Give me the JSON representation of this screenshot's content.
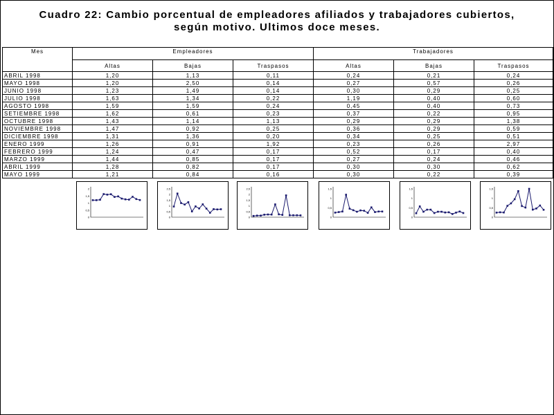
{
  "title_line1": "Cuadro 22: Cambio porcentual de empleadores afiliados y trabajadores cubiertos,",
  "title_line2": "según motivo. Ultimos doce meses.",
  "table": {
    "col_mes": "Mes",
    "group_empleadores": "Empleadores",
    "group_trabajadores": "Trabajadores",
    "sub_headers": [
      "Altas",
      "Bajas",
      "Traspasos",
      "Altas",
      "Bajas",
      "Traspasos"
    ],
    "rows": [
      {
        "mes": "ABRIL 1998",
        "v": [
          "1,20",
          "1,13",
          "0,11",
          "0,24",
          "0,21",
          "0,24"
        ]
      },
      {
        "mes": "MAYO 1998",
        "v": [
          "1,20",
          "2,50",
          "0,14",
          "0,27",
          "0,57",
          "0,26"
        ]
      },
      {
        "mes": "JUNIO 1998",
        "v": [
          "1,23",
          "1,49",
          "0,14",
          "0,30",
          "0,29",
          "0,25"
        ]
      },
      {
        "mes": "JULIO 1998",
        "v": [
          "1,63",
          "1,34",
          "0,22",
          "1,19",
          "0,40",
          "0,60"
        ]
      },
      {
        "mes": "AGOSTO 1998",
        "v": [
          "1,59",
          "1,59",
          "0,24",
          "0,45",
          "0,40",
          "0,73"
        ]
      },
      {
        "mes": "SETIEMBRE 1998",
        "v": [
          "1,62",
          "0,61",
          "0,23",
          "0,37",
          "0,22",
          "0,95"
        ]
      },
      {
        "mes": "OCTUBRE 1998",
        "v": [
          "1,43",
          "1,14",
          "1,13",
          "0,29",
          "0,29",
          "1,38"
        ]
      },
      {
        "mes": "NOVIEMBRE 1998",
        "v": [
          "1,47",
          "0,92",
          "0,25",
          "0,36",
          "0,29",
          "0,59"
        ]
      },
      {
        "mes": "DICIEMBRE 1998",
        "v": [
          "1,31",
          "1,36",
          "0,20",
          "0,34",
          "0,25",
          "0,51"
        ]
      },
      {
        "mes": "ENERO 1999",
        "v": [
          "1,26",
          "0,91",
          "1,92",
          "0,23",
          "0,26",
          "2,97"
        ]
      },
      {
        "mes": "FEBRERO 1999",
        "v": [
          "1,24",
          "0,47",
          "0,17",
          "0,52",
          "0,17",
          "0,40"
        ]
      },
      {
        "mes": "MARZO 1999",
        "v": [
          "1,44",
          "0,85",
          "0,17",
          "0,27",
          "0,24",
          "0,46"
        ]
      },
      {
        "mes": "ABRIL 1999",
        "v": [
          "1,28",
          "0,82",
          "0,17",
          "0,30",
          "0,30",
          "0,62"
        ]
      },
      {
        "mes": "MAYO 1999",
        "v": [
          "1,21",
          "0,84",
          "0,16",
          "0,30",
          "0,22",
          "0,39"
        ]
      }
    ]
  },
  "chart_data": [
    {
      "type": "line",
      "series": [
        {
          "values": [
            1.2,
            1.2,
            1.23,
            1.63,
            1.59,
            1.62,
            1.43,
            1.47,
            1.31,
            1.26,
            1.24,
            1.44,
            1.28,
            1.21
          ]
        }
      ],
      "ylim": [
        0,
        2.0
      ],
      "yticks": [
        "2",
        "1,5",
        "1",
        "0,5",
        "0"
      ],
      "color": "#1a1a6e"
    },
    {
      "type": "line",
      "series": [
        {
          "values": [
            1.13,
            2.5,
            1.49,
            1.34,
            1.59,
            0.61,
            1.14,
            0.92,
            1.36,
            0.91,
            0.47,
            0.85,
            0.82,
            0.84
          ]
        }
      ],
      "ylim": [
        0,
        3.0
      ],
      "yticks": [
        "2,5",
        "2",
        "1,5",
        "1",
        "0,5",
        "0"
      ],
      "color": "#1a1a6e"
    },
    {
      "type": "line",
      "series": [
        {
          "values": [
            0.11,
            0.14,
            0.14,
            0.22,
            0.24,
            0.23,
            1.13,
            0.25,
            0.2,
            1.92,
            0.17,
            0.17,
            0.17,
            0.16
          ]
        }
      ],
      "ylim": [
        0,
        2.5
      ],
      "yticks": [
        "2,5",
        "2",
        "1,5",
        "1",
        "0,5",
        "0"
      ],
      "color": "#1a1a6e"
    },
    {
      "type": "line",
      "series": [
        {
          "values": [
            0.24,
            0.27,
            0.3,
            1.19,
            0.45,
            0.37,
            0.29,
            0.36,
            0.34,
            0.23,
            0.52,
            0.27,
            0.3,
            0.3
          ]
        }
      ],
      "ylim": [
        0,
        1.5
      ],
      "yticks": [
        "1,5",
        "1",
        "0,5",
        "0"
      ],
      "color": "#1a1a6e"
    },
    {
      "type": "line",
      "series": [
        {
          "values": [
            0.21,
            0.57,
            0.29,
            0.4,
            0.4,
            0.22,
            0.29,
            0.29,
            0.25,
            0.26,
            0.17,
            0.24,
            0.3,
            0.22
          ]
        }
      ],
      "ylim": [
        0,
        1.5
      ],
      "yticks": [
        "1,5",
        "1",
        "0,5",
        "0"
      ],
      "color": "#1a1a6e"
    },
    {
      "type": "line",
      "series": [
        {
          "values": [
            0.24,
            0.26,
            0.25,
            0.6,
            0.73,
            0.95,
            1.38,
            0.59,
            0.51,
            2.97,
            0.4,
            0.46,
            0.62,
            0.39
          ]
        }
      ],
      "ylim": [
        0,
        1.5
      ],
      "yticks": [
        "1,5",
        "1",
        "0,5",
        "0"
      ],
      "color": "#1a1a6e"
    }
  ]
}
